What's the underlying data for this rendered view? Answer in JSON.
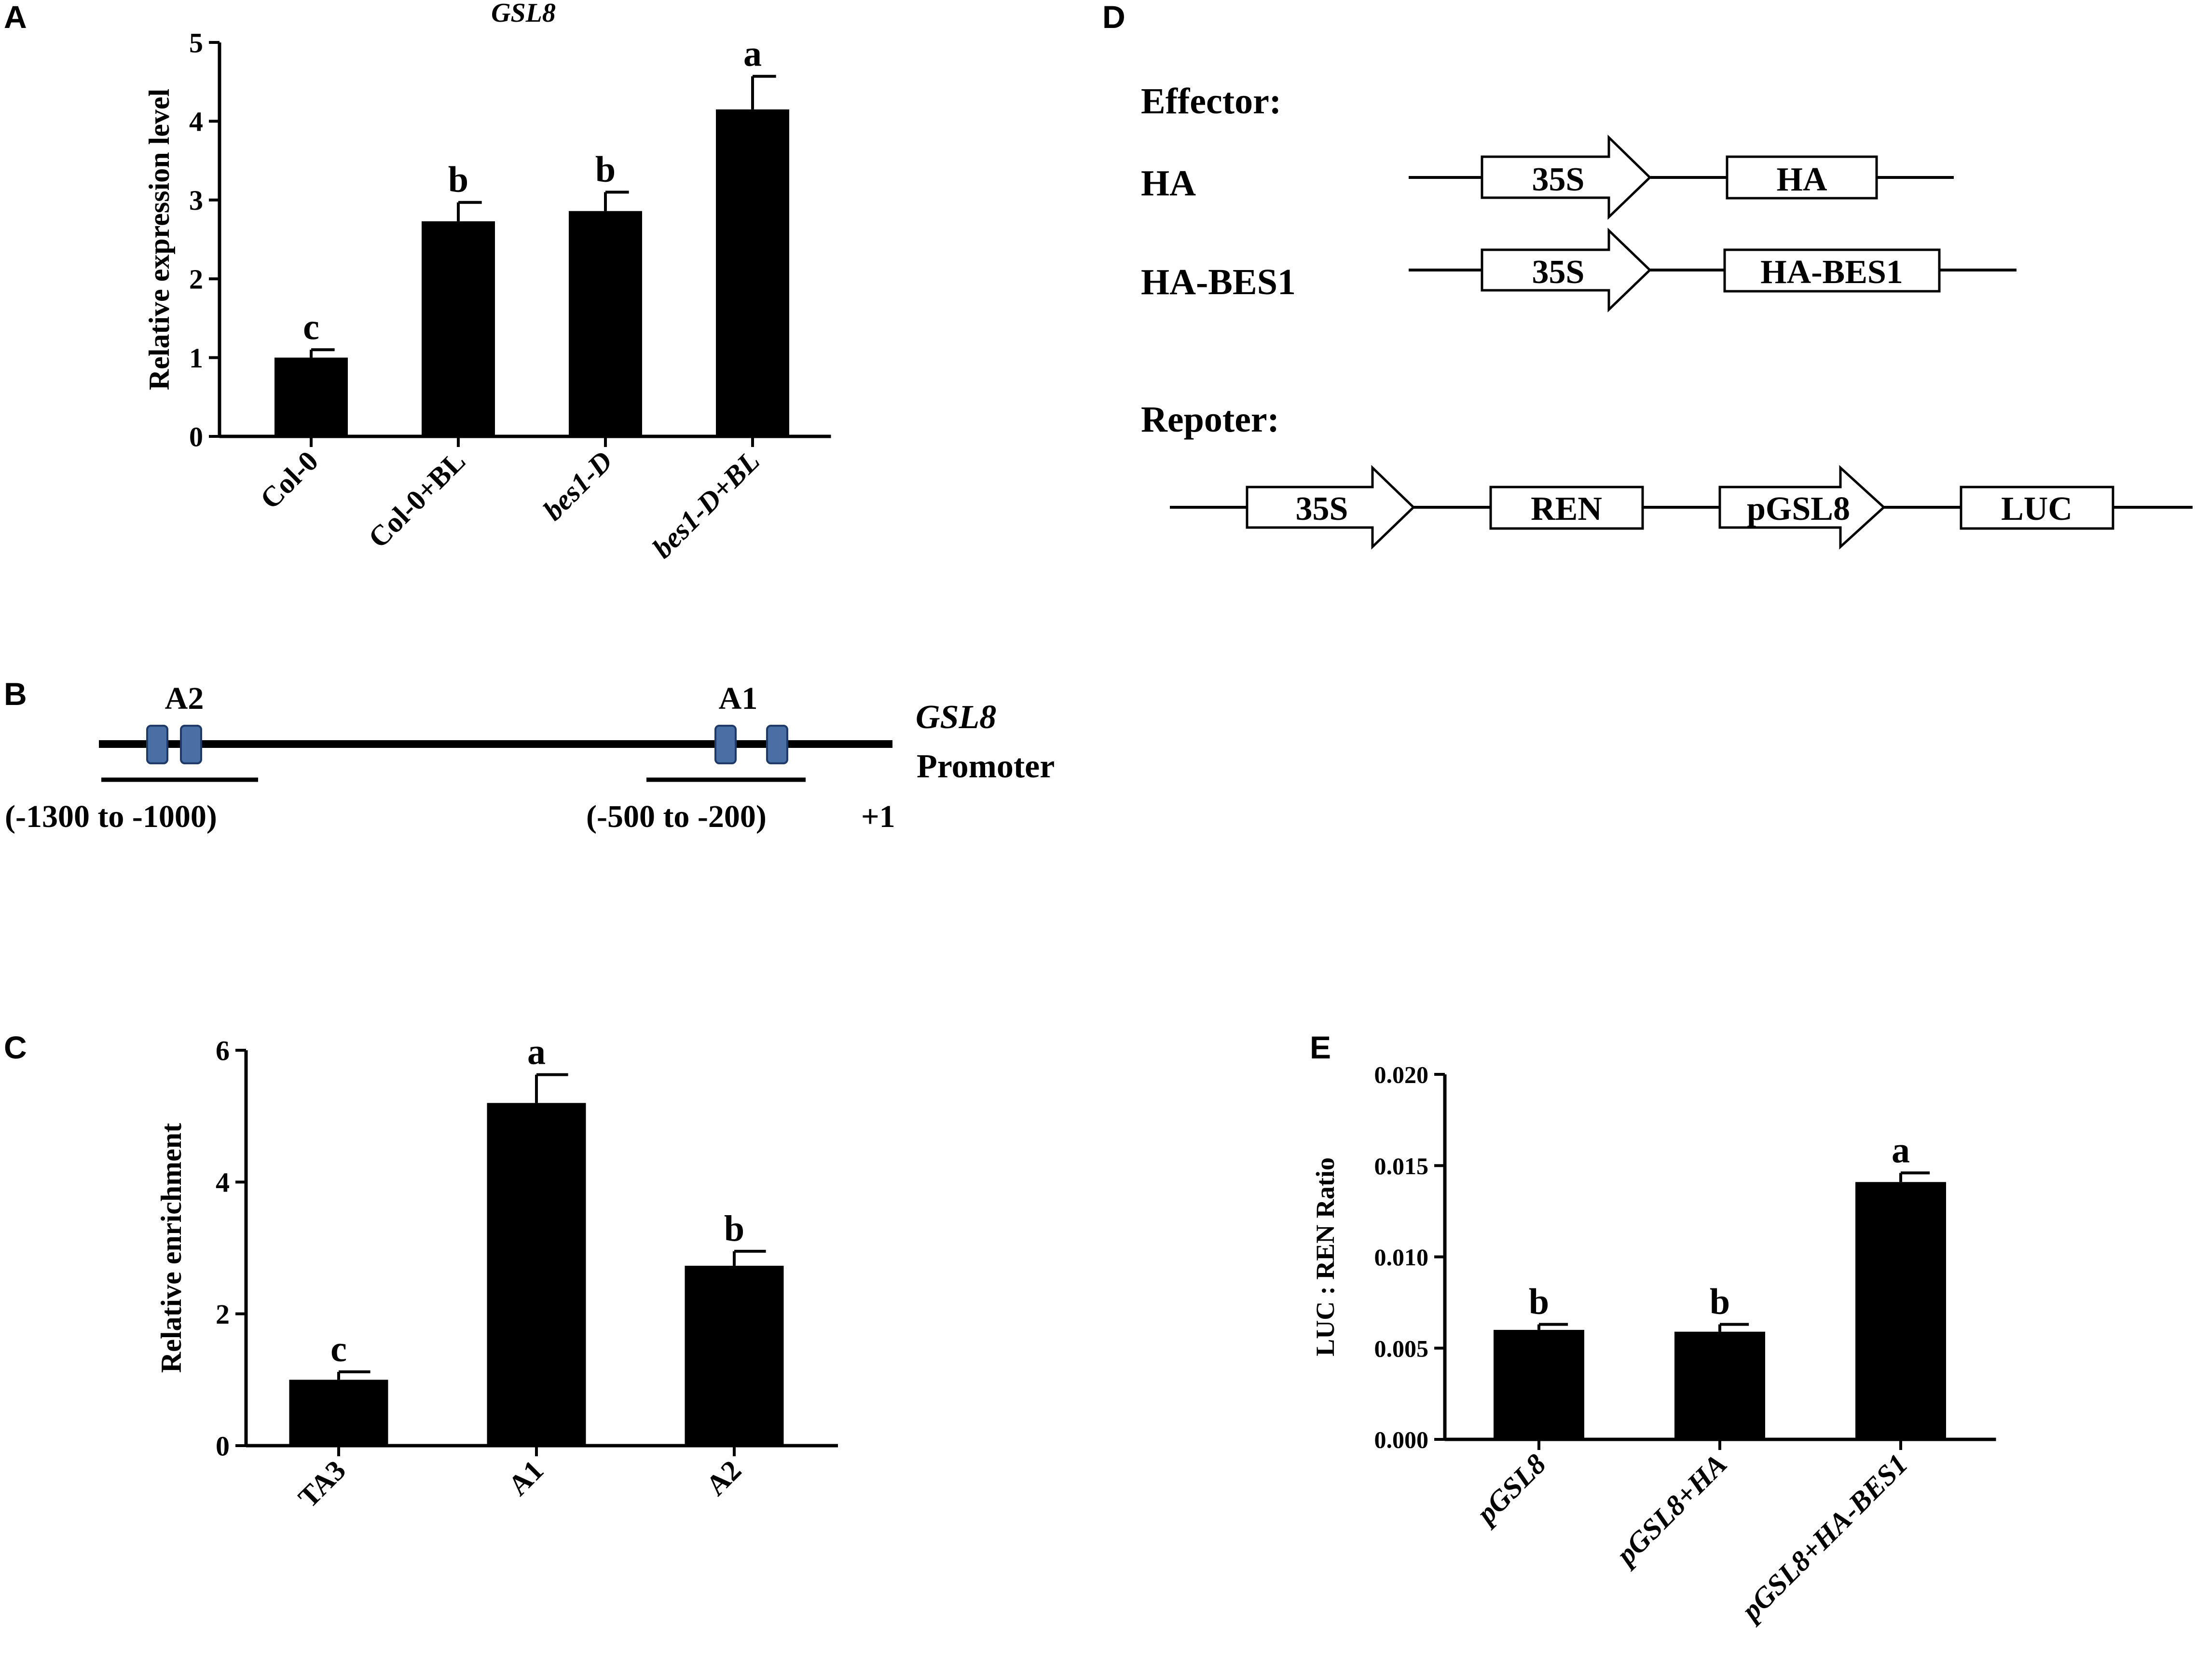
{
  "panels": {
    "A": {
      "letter": "A"
    },
    "B": {
      "letter": "B"
    },
    "C": {
      "letter": "C"
    },
    "D": {
      "letter": "D"
    },
    "E": {
      "letter": "E"
    }
  },
  "promoter_diagram": {
    "gene": "GSL8",
    "suffix": "Promoter",
    "site_a2": "A2",
    "site_a1": "A1",
    "region_a2": "(-1300 to -1000)",
    "region_a1": "(-500 to -200)",
    "tss": "+1"
  },
  "constructs": {
    "effector_label": "Effector:",
    "reporter_label": "Repoter:",
    "ha_row_label": "HA",
    "habes1_row_label": "HA-BES1",
    "promoter_35s": "35S",
    "ha_box": "HA",
    "habes1_box": "HA-BES1",
    "ren_box": "REN",
    "pgsl8_box": "pGSL8",
    "luc_box": "LUC"
  },
  "chart_data": [
    {
      "id": "A",
      "type": "bar",
      "title": "GSL8",
      "ylabel": "Relative expression level",
      "xlabel": "",
      "ylim": [
        0,
        5
      ],
      "yticks": [
        "0",
        "1",
        "2",
        "3",
        "4",
        "5"
      ],
      "categories": [
        "Col-0",
        "Col-0+BL",
        "bes1-D",
        "bes1-D+BL"
      ],
      "values": [
        1.0,
        2.73,
        2.86,
        4.15
      ],
      "errors": [
        0.1,
        0.24,
        0.24,
        0.42
      ],
      "letters": [
        "c",
        "b",
        "b",
        "a"
      ],
      "bar_color": "#000000",
      "grid": false
    },
    {
      "id": "C",
      "type": "bar",
      "title": "",
      "ylabel": "Relative enrichment",
      "xlabel": "",
      "ylim": [
        0,
        6
      ],
      "yticks": [
        "0",
        "2",
        "4",
        "6"
      ],
      "categories": [
        "TA3",
        "A1",
        "A2"
      ],
      "values": [
        1.0,
        5.2,
        2.73
      ],
      "errors": [
        0.12,
        0.43,
        0.22
      ],
      "letters": [
        "c",
        "a",
        "b"
      ],
      "bar_color": "#000000",
      "grid": false
    },
    {
      "id": "E",
      "type": "bar",
      "title": "",
      "ylabel": "LUC : REN Ratio",
      "xlabel": "",
      "ylim": [
        0,
        0.02
      ],
      "yticks": [
        "0.000",
        "0.005",
        "0.010",
        "0.015",
        "0.020"
      ],
      "categories": [
        "pGSL8",
        "pGSL8+HA",
        "pGSL8+HA-BES1"
      ],
      "values": [
        0.006,
        0.0059,
        0.0141
      ],
      "errors": [
        0.0003,
        0.0004,
        0.0005
      ],
      "letters": [
        "b",
        "b",
        "a"
      ],
      "bar_color": "#000000",
      "grid": false
    }
  ]
}
